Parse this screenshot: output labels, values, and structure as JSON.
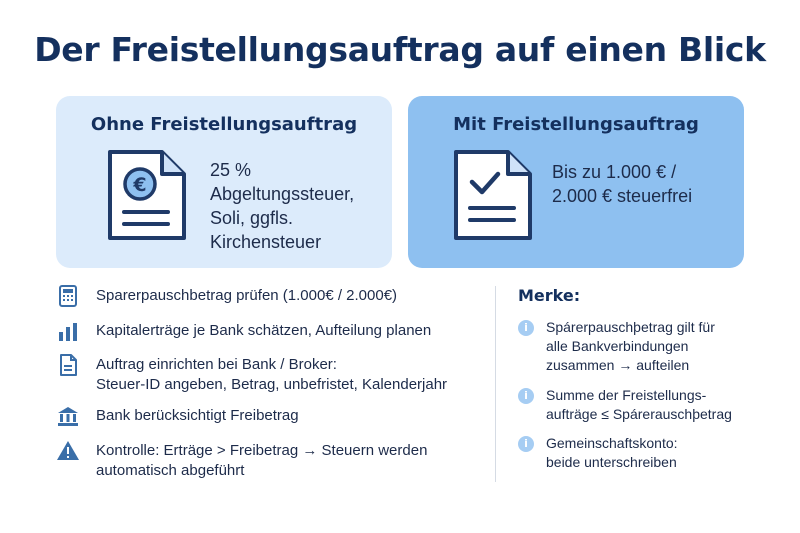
{
  "title": "Der Freistellungsauftrag auf einen Blick",
  "colors": {
    "title": "#14305e",
    "card_left_bg": "#dcebfb",
    "card_right_bg": "#8ec0f0",
    "icon": "#1f3a68",
    "info_badge": "#a6cdf3"
  },
  "cards": {
    "left": {
      "title": "Ohne Freistellungsauftrag",
      "icon": "euro-document-icon",
      "lines": [
        "25 %",
        "Abgeltungssteuer,",
        "Soli, ggfls.",
        "Kirchensteuer"
      ]
    },
    "right": {
      "title": "Mit Freistellungsauftrag",
      "icon": "checked-document-icon",
      "lines": [
        "Bis zu 1.000 € /",
        "2.000 € steuerfrei"
      ]
    }
  },
  "steps": [
    {
      "icon": "calculator-icon",
      "lines": [
        "Sparerpauschbetrag prüfen (1.000€ / 2.000€)"
      ]
    },
    {
      "icon": "bar-chart-icon",
      "lines": [
        "Kapitalerträge je Bank schätzen, Aufteilung planen"
      ]
    },
    {
      "icon": "document-icon",
      "lines": [
        "Auftrag einrichten bei Bank / Broker:",
        "Steuer-ID angeben, Betrag, unbefristet, Kalenderjahr"
      ]
    },
    {
      "icon": "bank-icon",
      "lines": [
        "Bank berücksichtigt Freibetrag"
      ]
    },
    {
      "icon": "warning-icon",
      "lines": [
        "Kontrolle: Erträge > Freibetrag → Steuern werden",
        "automatisch abgeführt"
      ]
    }
  ],
  "notes": {
    "title": "Merke:",
    "items": [
      {
        "icon": "info-icon",
        "badge": "i",
        "lines": [
          "Spárerpauschþetrag gilt für",
          "alle Bankverbindungen",
          "zusammen → aufteilen"
        ]
      },
      {
        "icon": "info-icon",
        "badge": "i",
        "lines": [
          "Summe der Freistellungs-",
          "aufträge ≤ Spárerauschþetrag"
        ]
      },
      {
        "icon": "info-icon",
        "badge": "i",
        "lines": [
          "Gemeinschaftskonto:",
          "beide unterschreiben"
        ]
      }
    ]
  }
}
